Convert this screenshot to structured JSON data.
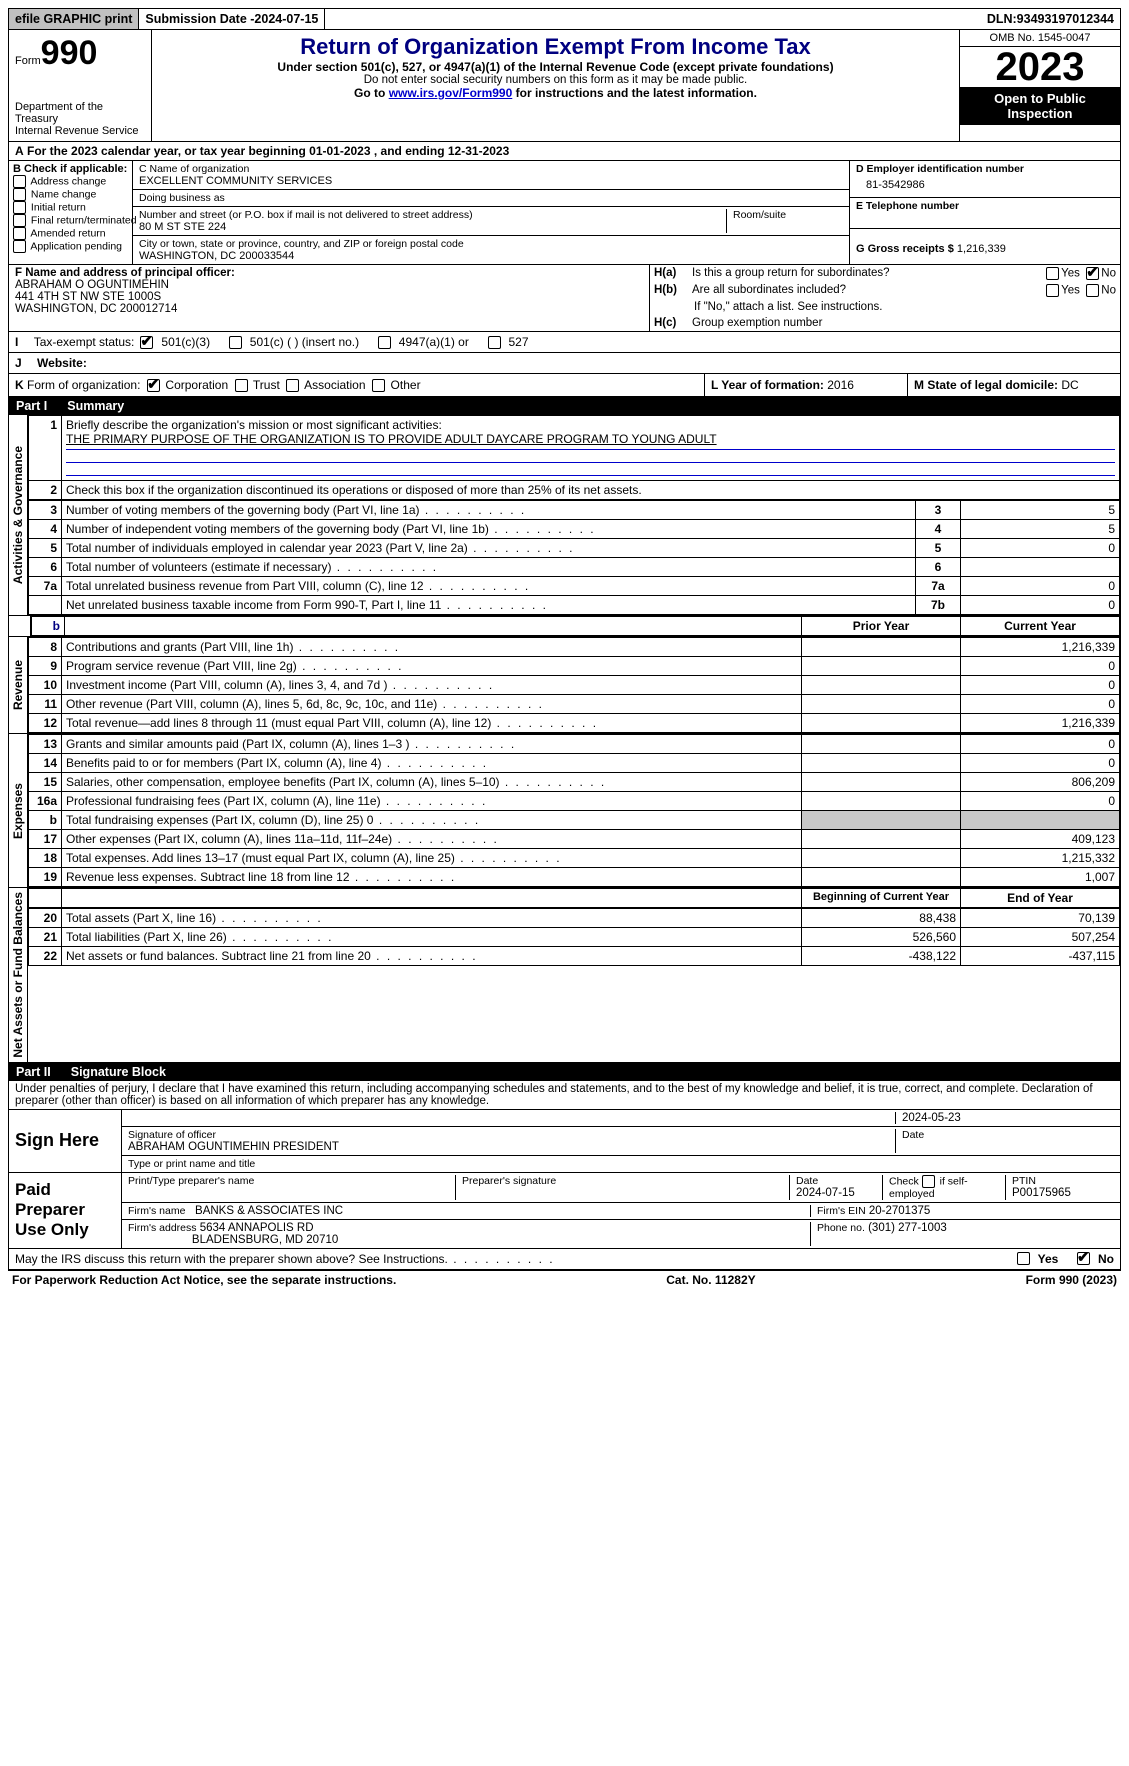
{
  "topbar": {
    "efile": "efile GRAPHIC print",
    "subdate_label": "Submission Date - ",
    "subdate": "2024-07-15",
    "dln_label": "DLN: ",
    "dln": "93493197012344"
  },
  "header": {
    "form_label": "Form",
    "form_no": "990",
    "dept1": "Department of the Treasury",
    "dept2": "Internal Revenue Service",
    "title": "Return of Organization Exempt From Income Tax",
    "sub": "Under section 501(c), 527, or 4947(a)(1) of the Internal Revenue Code (except private foundations)",
    "note": "Do not enter social security numbers on this form as it may be made public.",
    "go_pre": "Go to ",
    "go_link": "www.irs.gov/Form990",
    "go_post": " for instructions and the latest information.",
    "omb": "OMB No. 1545-0047",
    "year": "2023",
    "open": "Open to Public Inspection"
  },
  "A": {
    "text_pre": "For the 2023 calendar year, or tax year beginning ",
    "begin": "01-01-2023",
    "mid": "  , and ending ",
    "end": "12-31-2023"
  },
  "B": {
    "label": "B Check if applicable:",
    "items": [
      "Address change",
      "Name change",
      "Initial return",
      "Final return/terminated",
      "Amended return",
      "Application pending"
    ]
  },
  "C": {
    "name_label": "C Name of organization",
    "name": "EXCELLENT COMMUNITY SERVICES",
    "dba_label": "Doing business as",
    "dba": "",
    "street_label": "Number and street (or P.O. box if mail is not delivered to street address)",
    "street": "80 M ST STE 224",
    "room_label": "Room/suite",
    "city_label": "City or town, state or province, country, and ZIP or foreign postal code",
    "city": "WASHINGTON, DC  200033544"
  },
  "D": {
    "label": "D Employer identification number",
    "value": "81-3542986"
  },
  "E": {
    "label": "E Telephone number",
    "value": ""
  },
  "G": {
    "label": "G Gross receipts $ ",
    "value": "1,216,339"
  },
  "F": {
    "label": "F  Name and address of principal officer:",
    "name": "ABRAHAM O OGUNTIMEHIN",
    "addr1": "441 4TH ST NW STE 1000S",
    "addr2": "WASHINGTON, DC  200012714"
  },
  "H": {
    "a": "Is this a group return for subordinates?",
    "a_yes": false,
    "a_no": true,
    "b": "Are all subordinates included?",
    "b_yes": false,
    "b_no": false,
    "b_note": "If \"No,\" attach a list. See instructions.",
    "c": "Group exemption number"
  },
  "I": {
    "label": "Tax-exempt status:",
    "opts": [
      "501(c)(3)",
      "501(c) (  ) (insert no.)",
      "4947(a)(1) or",
      "527"
    ],
    "checked": 0
  },
  "J": {
    "label": "Website:",
    "value": ""
  },
  "K": {
    "label": "Form of organization:",
    "opts": [
      "Corporation",
      "Trust",
      "Association",
      "Other"
    ],
    "checked": 0
  },
  "L": {
    "label": "L Year of formation: ",
    "value": "2016"
  },
  "M": {
    "label": "M State of legal domicile: ",
    "value": "DC"
  },
  "partI": {
    "part": "Part I",
    "title": "Summary"
  },
  "summary": {
    "line1_label": "Briefly describe the organization's mission or most significant activities:",
    "line1_text": "THE PRIMARY PURPOSE OF THE ORGANIZATION IS TO PROVIDE ADULT DAYCARE PROGRAM TO YOUNG ADULT",
    "line2": "Check this box      if the organization discontinued its operations or disposed of more than 25% of its net assets.",
    "vtab1": "Activities & Governance",
    "vtab2": "Revenue",
    "vtab3": "Expenses",
    "vtab4": "Net Assets or Fund Balances",
    "rows_gov": [
      {
        "n": "3",
        "t": "Number of voting members of the governing body (Part VI, line 1a)",
        "box": "3",
        "v": "5"
      },
      {
        "n": "4",
        "t": "Number of independent voting members of the governing body (Part VI, line 1b)",
        "box": "4",
        "v": "5"
      },
      {
        "n": "5",
        "t": "Total number of individuals employed in calendar year 2023 (Part V, line 2a)",
        "box": "5",
        "v": "0"
      },
      {
        "n": "6",
        "t": "Total number of volunteers (estimate if necessary)",
        "box": "6",
        "v": ""
      },
      {
        "n": "7a",
        "t": "Total unrelated business revenue from Part VIII, column (C), line 12",
        "box": "7a",
        "v": "0"
      },
      {
        "n": "",
        "t": "Net unrelated business taxable income from Form 990-T, Part I, line 11",
        "box": "7b",
        "v": "0"
      }
    ],
    "hdr_prior": "Prior Year",
    "hdr_curr": "Current Year",
    "rows_rev": [
      {
        "n": "8",
        "t": "Contributions and grants (Part VIII, line 1h)",
        "p": "",
        "c": "1,216,339"
      },
      {
        "n": "9",
        "t": "Program service revenue (Part VIII, line 2g)",
        "p": "",
        "c": "0"
      },
      {
        "n": "10",
        "t": "Investment income (Part VIII, column (A), lines 3, 4, and 7d )",
        "p": "",
        "c": "0"
      },
      {
        "n": "11",
        "t": "Other revenue (Part VIII, column (A), lines 5, 6d, 8c, 9c, 10c, and 11e)",
        "p": "",
        "c": "0"
      },
      {
        "n": "12",
        "t": "Total revenue—add lines 8 through 11 (must equal Part VIII, column (A), line 12)",
        "p": "",
        "c": "1,216,339"
      }
    ],
    "rows_exp": [
      {
        "n": "13",
        "t": "Grants and similar amounts paid (Part IX, column (A), lines 1–3 )",
        "p": "",
        "c": "0"
      },
      {
        "n": "14",
        "t": "Benefits paid to or for members (Part IX, column (A), line 4)",
        "p": "",
        "c": "0"
      },
      {
        "n": "15",
        "t": "Salaries, other compensation, employee benefits (Part IX, column (A), lines 5–10)",
        "p": "",
        "c": "806,209"
      },
      {
        "n": "16a",
        "t": "Professional fundraising fees (Part IX, column (A), line 11e)",
        "p": "",
        "c": "0"
      },
      {
        "n": "b",
        "t": "Total fundraising expenses (Part IX, column (D), line 25) 0",
        "p": "shade",
        "c": "shade",
        "small": true
      },
      {
        "n": "17",
        "t": "Other expenses (Part IX, column (A), lines 11a–11d, 11f–24e)",
        "p": "",
        "c": "409,123"
      },
      {
        "n": "18",
        "t": "Total expenses. Add lines 13–17 (must equal Part IX, column (A), line 25)",
        "p": "",
        "c": "1,215,332"
      },
      {
        "n": "19",
        "t": "Revenue less expenses. Subtract line 18 from line 12",
        "p": "",
        "c": "1,007"
      }
    ],
    "hdr_beg": "Beginning of Current Year",
    "hdr_end": "End of Year",
    "rows_net": [
      {
        "n": "20",
        "t": "Total assets (Part X, line 16)",
        "p": "88,438",
        "c": "70,139"
      },
      {
        "n": "21",
        "t": "Total liabilities (Part X, line 26)",
        "p": "526,560",
        "c": "507,254"
      },
      {
        "n": "22",
        "t": "Net assets or fund balances. Subtract line 21 from line 20",
        "p": "-438,122",
        "c": "-437,115"
      }
    ]
  },
  "partII": {
    "part": "Part II",
    "title": "Signature Block"
  },
  "perjury": "Under penalties of perjury, I declare that I have examined this return, including accompanying schedules and statements, and to the best of my knowledge and belief, it is true, correct, and complete. Declaration of preparer (other than officer) is based on all information of which preparer has any knowledge.",
  "sign": {
    "here": "Sign Here",
    "sig_label": "Signature of officer",
    "date_label": "Date",
    "date": "2024-05-23",
    "name": "ABRAHAM OGUNTIMEHIN  PRESIDENT",
    "type_label": "Type or print name and title"
  },
  "paid": {
    "title": "Paid Preparer Use Only",
    "pt_name_label": "Print/Type preparer's name",
    "sig_label": "Preparer's signature",
    "date_label": "Date",
    "date": "2024-07-15",
    "check_label": "Check         if self-employed",
    "ptin_label": "PTIN",
    "ptin": "P00175965",
    "firm_name_label": "Firm's name",
    "firm_name": "BANKS & ASSOCIATES INC",
    "firm_ein_label": "Firm's EIN",
    "firm_ein": "20-2701375",
    "firm_addr_label": "Firm's address",
    "firm_addr1": "5634 ANNAPOLIS RD",
    "firm_addr2": "BLADENSBURG, MD  20710",
    "phone_label": "Phone no.",
    "phone": "(301) 277-1003"
  },
  "discuss": {
    "text": "May the IRS discuss this return with the preparer shown above? See Instructions.",
    "yes": false,
    "no": true
  },
  "footer": {
    "pra": "For Paperwork Reduction Act Notice, see the separate instructions.",
    "cat": "Cat. No. 11282Y",
    "form": "Form 990 (2023)"
  },
  "labels": {
    "yes": "Yes",
    "no": "No",
    "ha": "H(a)",
    "hb": "H(b)",
    "hc": "H(c)",
    "A": "A",
    "I": "I",
    "J": "J",
    "K": "K",
    "b_row": "b"
  }
}
